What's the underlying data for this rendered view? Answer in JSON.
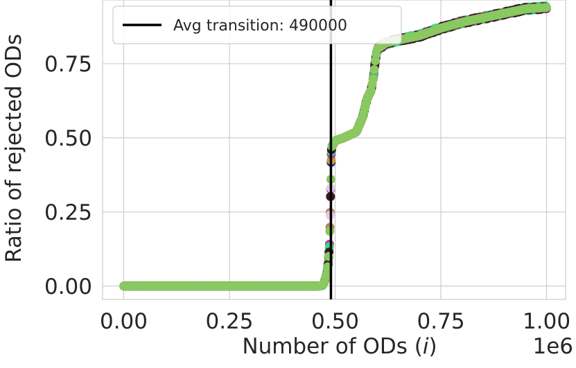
{
  "chart_data": {
    "type": "scatter",
    "title": "",
    "xlabel_prefix": "Number of ODs (",
    "xlabel_var": "i",
    "xlabel_suffix": ")",
    "x_multiplier": "1e6",
    "ylabel": "Ratio of rejected ODs",
    "xlim": [
      -0.05,
      1.045
    ],
    "ylim": [
      -0.045,
      0.965
    ],
    "xticks": [
      0.0,
      0.25,
      0.5,
      0.75,
      1.0
    ],
    "xtick_labels": [
      "0.00",
      "0.25",
      "0.50",
      "0.75",
      "1.00"
    ],
    "yticks": [
      0.0,
      0.25,
      0.5,
      0.75
    ],
    "ytick_labels": [
      "0.00",
      "0.25",
      "0.50",
      "0.75"
    ],
    "grid": true,
    "legend": {
      "placement": "top-left",
      "label": "Avg transition: 490000"
    },
    "transition_line": {
      "x": 0.49,
      "color": "#000000"
    },
    "series_colors": [
      "#3b2a9a",
      "#c5a028",
      "#b38a5c",
      "#e6c8e6",
      "#b040b0",
      "#30e080",
      "#3a1a2a",
      "#8ac860"
    ],
    "curve": [
      [
        0.0,
        0.0
      ],
      [
        0.1,
        0.0
      ],
      [
        0.2,
        0.0
      ],
      [
        0.3,
        0.0
      ],
      [
        0.4,
        0.0
      ],
      [
        0.46,
        0.0
      ],
      [
        0.47,
        0.002
      ],
      [
        0.475,
        0.015
      ],
      [
        0.48,
        0.04
      ],
      [
        0.483,
        0.07
      ],
      [
        0.485,
        0.1
      ],
      [
        0.487,
        0.15
      ],
      [
        0.488,
        0.22
      ],
      [
        0.489,
        0.3
      ],
      [
        0.49,
        0.36
      ],
      [
        0.491,
        0.45
      ],
      [
        0.492,
        0.47
      ],
      [
        0.5,
        0.49
      ],
      [
        0.52,
        0.5
      ],
      [
        0.55,
        0.52
      ],
      [
        0.565,
        0.57
      ],
      [
        0.575,
        0.63
      ],
      [
        0.585,
        0.66
      ],
      [
        0.59,
        0.7
      ],
      [
        0.595,
        0.76
      ],
      [
        0.6,
        0.8
      ],
      [
        0.62,
        0.82
      ],
      [
        0.65,
        0.83
      ],
      [
        0.7,
        0.845
      ],
      [
        0.75,
        0.87
      ],
      [
        0.8,
        0.89
      ],
      [
        0.85,
        0.905
      ],
      [
        0.9,
        0.92
      ],
      [
        0.95,
        0.935
      ],
      [
        1.0,
        0.94
      ]
    ]
  }
}
